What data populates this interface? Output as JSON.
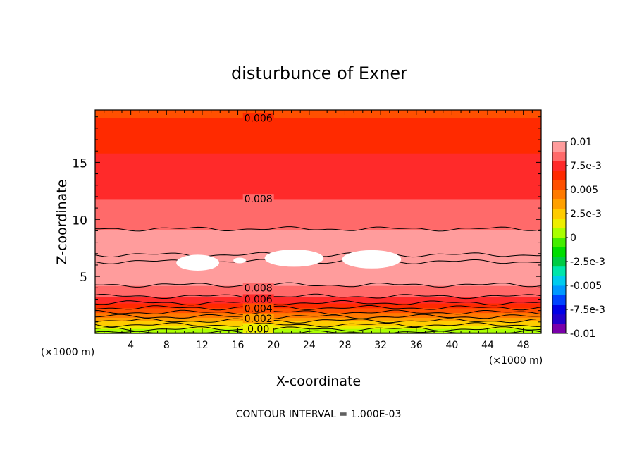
{
  "chart_data": {
    "type": "heatmap",
    "title": "disturbunce of Exner",
    "xlabel": "X-coordinate",
    "ylabel": "Z-coordinate",
    "x_unit": "(×1000 m)",
    "y_unit": "(×1000 m)",
    "xlim": [
      0,
      50
    ],
    "ylim": [
      0,
      19.6
    ],
    "x_ticks": [
      4,
      8,
      12,
      16,
      20,
      24,
      28,
      32,
      36,
      40,
      44,
      48
    ],
    "y_ticks": [
      5,
      10,
      15
    ],
    "footer": "CONTOUR INTERVAL = 1.000E-03",
    "colorbar": {
      "min": -0.01,
      "max": 0.01,
      "step": 0.001,
      "labels": [
        {
          "value": 0.01,
          "text": "0.01"
        },
        {
          "value": 0.0075,
          "text": "7.5e-3"
        },
        {
          "value": 0.005,
          "text": "0.005"
        },
        {
          "value": 0.0025,
          "text": "2.5e-3"
        },
        {
          "value": 0,
          "text": "0"
        },
        {
          "value": -0.0025,
          "text": "-2.5e-3"
        },
        {
          "value": -0.005,
          "text": "-0.005"
        },
        {
          "value": -0.0075,
          "text": "-7.5e-3"
        },
        {
          "value": -0.01,
          "text": "-0.01"
        }
      ],
      "colors": [
        "#7a00aa",
        "#2200cc",
        "#0000e6",
        "#0044ff",
        "#0099ff",
        "#00ccee",
        "#00e6aa",
        "#00cc44",
        "#00dd00",
        "#44ee00",
        "#aaff00",
        "#eeee00",
        "#ffcc00",
        "#ffa000",
        "#ff7a00",
        "#ff5000",
        "#ff2a00",
        "#ff2a2a",
        "#ff6a6a",
        "#ff9c9c"
      ]
    },
    "field_profile": [
      {
        "z": 0,
        "value": 0
      },
      {
        "z": 0.5,
        "value": 0.0013
      },
      {
        "z": 1.0,
        "value": 0.0027
      },
      {
        "z": 1.5,
        "value": 0.0041
      },
      {
        "z": 2.0,
        "value": 0.0054
      },
      {
        "z": 2.5,
        "value": 0.0066
      },
      {
        "z": 3.0,
        "value": 0.0077
      },
      {
        "z": 3.5,
        "value": 0.0083
      },
      {
        "z": 4.0,
        "value": 0.0087
      },
      {
        "z": 4.5,
        "value": 0.0093
      },
      {
        "z": 5.0,
        "value": 0.0097
      },
      {
        "z": 6.0,
        "value": 0.0099
      },
      {
        "z": 6.6,
        "value": 0.0101
      },
      {
        "z": 7.5,
        "value": 0.0098
      },
      {
        "z": 8.5,
        "value": 0.0093
      },
      {
        "z": 9.5,
        "value": 0.00885
      },
      {
        "z": 11.0,
        "value": 0.00815
      },
      {
        "z": 11.8,
        "value": 0.008
      },
      {
        "z": 13.5,
        "value": 0.0075
      },
      {
        "z": 15.8,
        "value": 0.007
      },
      {
        "z": 17.5,
        "value": 0.0065
      },
      {
        "z": 18.9,
        "value": 0.006
      },
      {
        "z": 19.6,
        "value": 0.0058
      }
    ],
    "contour_labels": [
      {
        "text": "0.006",
        "x": 18.3,
        "z": 18.9
      },
      {
        "text": "0.008",
        "x": 18.3,
        "z": 11.8
      },
      {
        "text": "0.008",
        "x": 18.3,
        "z": 4.0
      },
      {
        "text": "0.006",
        "x": 18.3,
        "z": 3.0
      },
      {
        "text": "0.004",
        "x": 18.3,
        "z": 2.2
      },
      {
        "text": "0.002",
        "x": 18.3,
        "z": 1.3
      },
      {
        "text": "0.00",
        "x": 18.3,
        "z": 0.4
      }
    ],
    "max_regions": [
      {
        "x_center": 11.5,
        "z_center": 6.2,
        "x_halfwidth": 2.4,
        "z_halfheight": 0.7
      },
      {
        "x_center": 16.2,
        "z_center": 6.4,
        "x_halfwidth": 0.7,
        "z_halfheight": 0.25
      },
      {
        "x_center": 22.3,
        "z_center": 6.6,
        "x_halfwidth": 3.3,
        "z_halfheight": 0.75
      },
      {
        "x_center": 31.0,
        "z_center": 6.5,
        "x_halfwidth": 3.3,
        "z_halfheight": 0.8
      }
    ]
  }
}
